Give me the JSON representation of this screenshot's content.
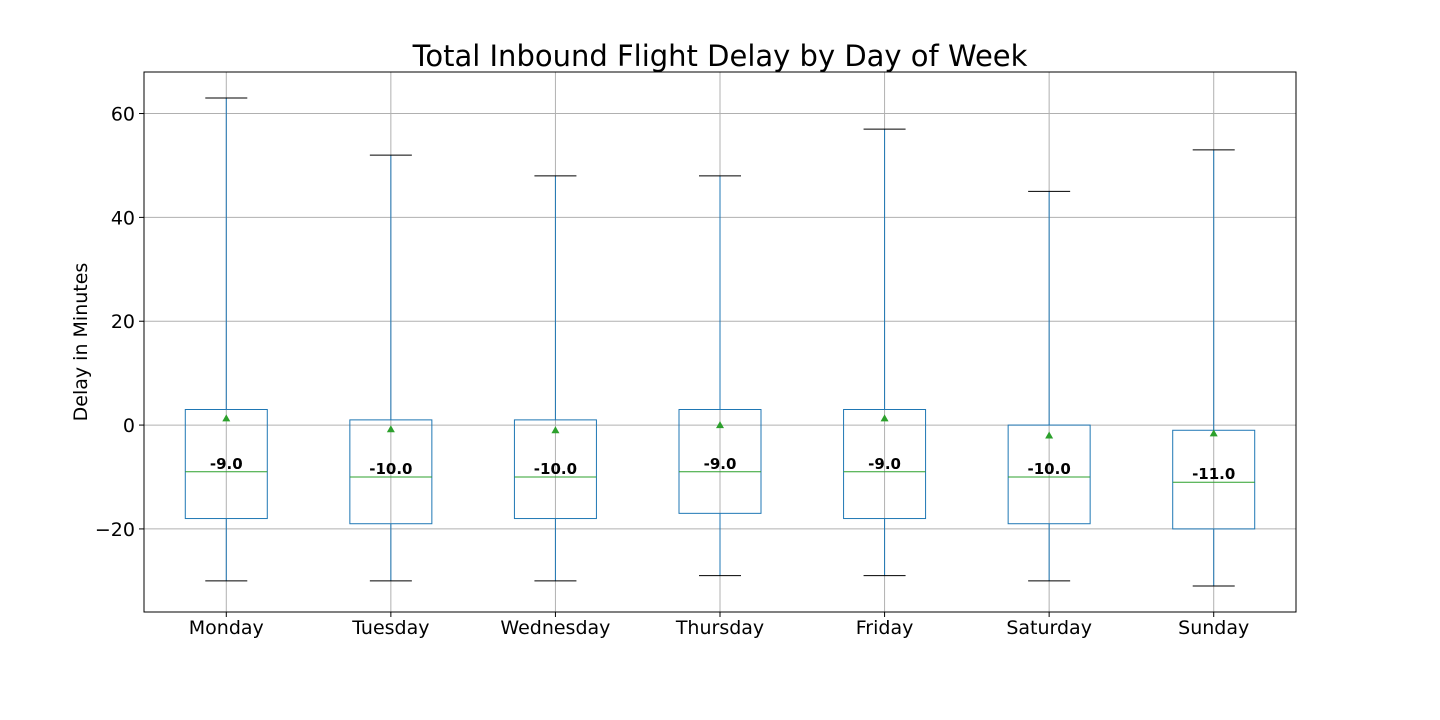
{
  "chart_data": {
    "type": "box",
    "title": "Total Inbound Flight Delay by Day of Week",
    "xlabel": "",
    "ylabel": "Delay in Minutes",
    "ylim": [
      -36,
      68
    ],
    "yticks": [
      -20,
      0,
      20,
      40,
      60
    ],
    "ytick_labels": [
      "−20",
      "0",
      "20",
      "40",
      "60"
    ],
    "grid": true,
    "legend": "none",
    "categories": [
      "Monday",
      "Tuesday",
      "Wednesday",
      "Thursday",
      "Friday",
      "Saturday",
      "Sunday"
    ],
    "boxes": [
      {
        "whisker_low": -30,
        "q1": -18,
        "median": -9,
        "q3": 3,
        "whisker_high": 63,
        "mean": 1.3,
        "median_label": "-9.0"
      },
      {
        "whisker_low": -30,
        "q1": -19,
        "median": -10,
        "q3": 1,
        "whisker_high": 52,
        "mean": -0.8,
        "median_label": "-10.0"
      },
      {
        "whisker_low": -30,
        "q1": -18,
        "median": -10,
        "q3": 1,
        "whisker_high": 48,
        "mean": -1.0,
        "median_label": "-10.0"
      },
      {
        "whisker_low": -29,
        "q1": -17,
        "median": -9,
        "q3": 3,
        "whisker_high": 48,
        "mean": 0.0,
        "median_label": "-9.0"
      },
      {
        "whisker_low": -29,
        "q1": -18,
        "median": -9,
        "q3": 3,
        "whisker_high": 57,
        "mean": 1.3,
        "median_label": "-9.0"
      },
      {
        "whisker_low": -30,
        "q1": -19,
        "median": -10,
        "q3": 0,
        "whisker_high": 45,
        "mean": -2.0,
        "median_label": "-10.0"
      },
      {
        "whisker_low": -31,
        "q1": -20,
        "median": -11,
        "q3": -1,
        "whisker_high": 53,
        "mean": -1.6,
        "median_label": "-11.0"
      }
    ],
    "colors": {
      "box": "#1f77b4",
      "median": "#2ca02c",
      "mean_marker": "#2ca02c",
      "caps": "#000000",
      "grid": "#b0b0b0",
      "frame": "#000000"
    }
  }
}
